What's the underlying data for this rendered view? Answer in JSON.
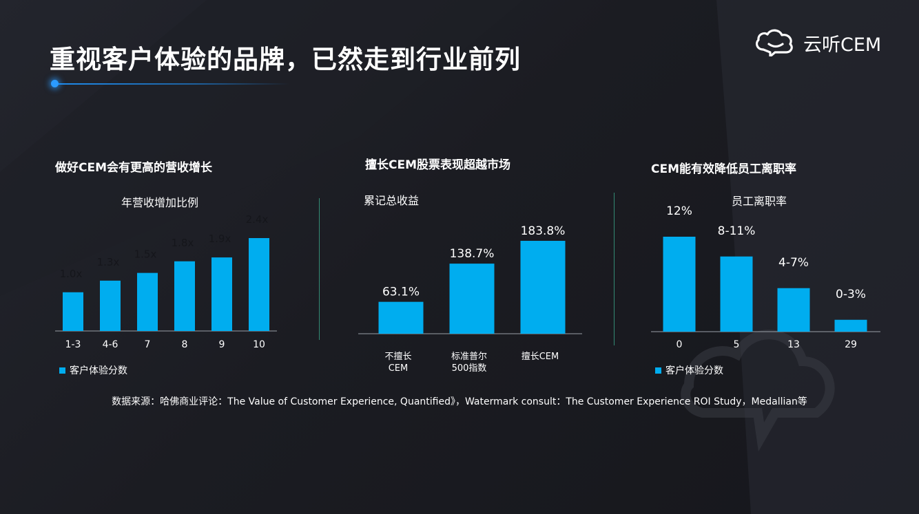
{
  "page": {
    "title": "重视客户体验的品牌，已然走到行业前列",
    "logo_text": "云听CEM",
    "source": "数据来源：哈佛商业评论：The Value of Customer Experience, Quantified》，Watermark consult：The Customer Experience ROI Study，Medallian等"
  },
  "colors": {
    "bar": "#00adef",
    "accent": "#1e8df0",
    "divider": "#3aa88a",
    "axis": "#9aa0a8"
  },
  "chart_data": [
    {
      "type": "bar",
      "heading": "做好CEM会有更高的营收增长",
      "title": "年营收增加比例",
      "categories": [
        "1-3",
        "4-6",
        "7",
        "8",
        "9",
        "10"
      ],
      "values": [
        1.0,
        1.3,
        1.5,
        1.8,
        1.9,
        2.4
      ],
      "data_labels": [
        "1.0x",
        "1.3x",
        "1.5x",
        "1.8x",
        "1.9x",
        "2.4x"
      ],
      "xlabel": "客户体验分数",
      "legend": "客户体验分数",
      "legend_position": "bottom-left",
      "ylim": [
        0,
        2.4
      ],
      "grid": false
    },
    {
      "type": "bar",
      "heading": "擅长CEM股票表现超越市场",
      "title": "累记总收益",
      "categories": [
        "不擅长\nCEM",
        "标准普尔\n500指数",
        "擅长CEM"
      ],
      "values": [
        63.1,
        138.7,
        183.8
      ],
      "data_labels": [
        "63.1%",
        "138.7%",
        "183.8%"
      ],
      "ylim": [
        0,
        183.8
      ],
      "grid": false
    },
    {
      "type": "bar",
      "heading": "CEM能有效降低员工离职率",
      "title": "员工离职率",
      "categories": [
        "0",
        "5",
        "13",
        "29"
      ],
      "values": [
        12,
        9.5,
        5.5,
        1.5
      ],
      "data_labels": [
        "12%",
        "8-11%",
        "4-7%",
        "0-3%"
      ],
      "xlabel": "客户体验分数",
      "legend": "客户体验分数",
      "legend_position": "bottom-left",
      "ylim": [
        0,
        12
      ],
      "grid": false
    }
  ]
}
